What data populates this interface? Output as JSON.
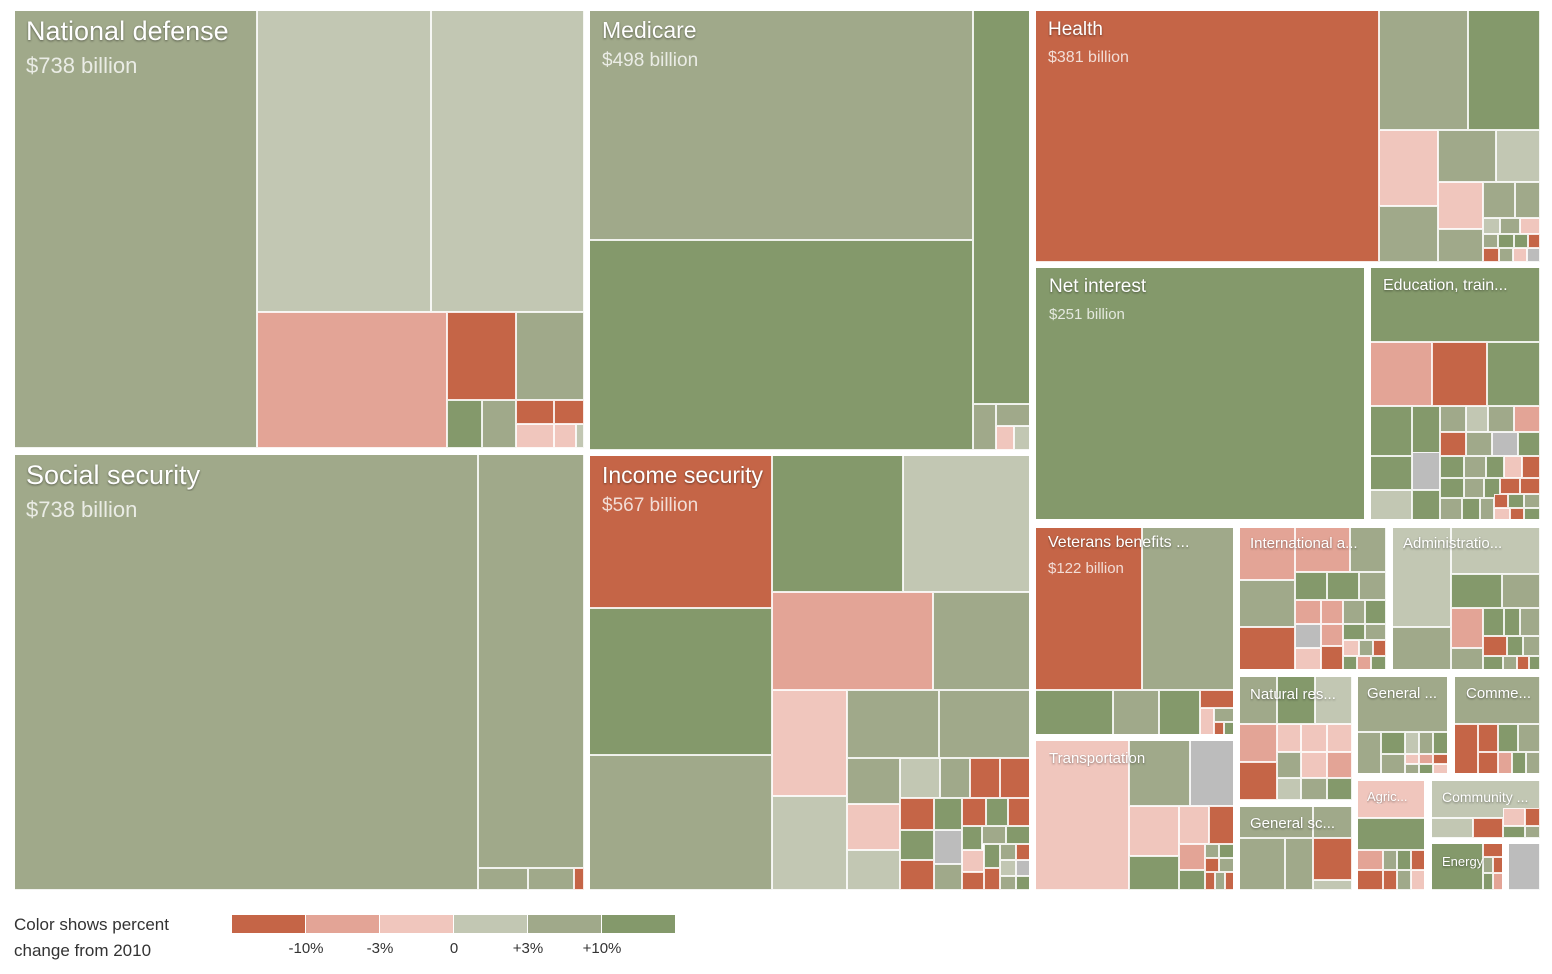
{
  "colors": {
    "dark_red": "#c56547",
    "mid_red": "#e3a496",
    "light_red": "#f0c6bd",
    "pale_sage": "#c2c7b3",
    "sage": "#a0a98a",
    "green": "#84996b",
    "gray": "#bcbcbc"
  },
  "chart_data": {
    "type": "treemap",
    "color_measure": "percent change from 2010",
    "groups": [
      {
        "key": "defense",
        "name": "National defense",
        "value_label": "$738 billion",
        "value_billion": 738,
        "color_class": "sage"
      },
      {
        "key": "medicare",
        "name": "Medicare",
        "value_label": "$498 billion",
        "value_billion": 498,
        "color_class": "sage"
      },
      {
        "key": "health",
        "name": "Health",
        "value_label": "$381 billion",
        "value_billion": 381,
        "color_class": "dark_red"
      },
      {
        "key": "social",
        "name": "Social security",
        "value_label": "$738 billion",
        "value_billion": 738,
        "color_class": "sage"
      },
      {
        "key": "income",
        "name": "Income security",
        "value_label": "$567 billion",
        "value_billion": 567,
        "color_class": "dark_red"
      },
      {
        "key": "interest",
        "name": "Net interest",
        "value_label": "$251 billion",
        "value_billion": 251,
        "color_class": "green"
      },
      {
        "key": "education",
        "name": "Education, train...",
        "value_label": "",
        "color_class": "green"
      },
      {
        "key": "veterans",
        "name": "Veterans benefits ...",
        "value_label": "$122 billion",
        "value_billion": 122,
        "color_class": "dark_red"
      },
      {
        "key": "international",
        "name": "International a...",
        "value_label": "",
        "color_class": "mid_red"
      },
      {
        "key": "admin",
        "name": "Administratio...",
        "value_label": "",
        "color_class": "pale_sage"
      },
      {
        "key": "transport",
        "name": "Transportation",
        "value_label": "",
        "color_class": "light_red"
      },
      {
        "key": "natural",
        "name": "Natural res...",
        "value_label": "",
        "color_class": "sage"
      },
      {
        "key": "general_gov",
        "name": "General ...",
        "value_label": "",
        "color_class": "sage"
      },
      {
        "key": "commerce",
        "name": "Comme...",
        "value_label": "",
        "color_class": "sage"
      },
      {
        "key": "general_sc",
        "name": "General sc...",
        "value_label": "",
        "color_class": "sage"
      },
      {
        "key": "agric",
        "name": "Agric...",
        "value_label": "",
        "color_class": "light_red"
      },
      {
        "key": "community",
        "name": "Community ...",
        "value_label": "",
        "color_class": "pale_sage"
      },
      {
        "key": "energy",
        "name": "Energy",
        "value_label": "",
        "color_class": "green"
      }
    ]
  },
  "legend": {
    "title_line1": "Color shows percent",
    "title_line2": "change from 2010",
    "tick_labels": [
      "-10%",
      "-3%",
      "0",
      "+3%",
      "+10%"
    ],
    "swatches": [
      "dark_red",
      "mid_red",
      "light_red",
      "pale_sage",
      "sage",
      "green"
    ]
  }
}
